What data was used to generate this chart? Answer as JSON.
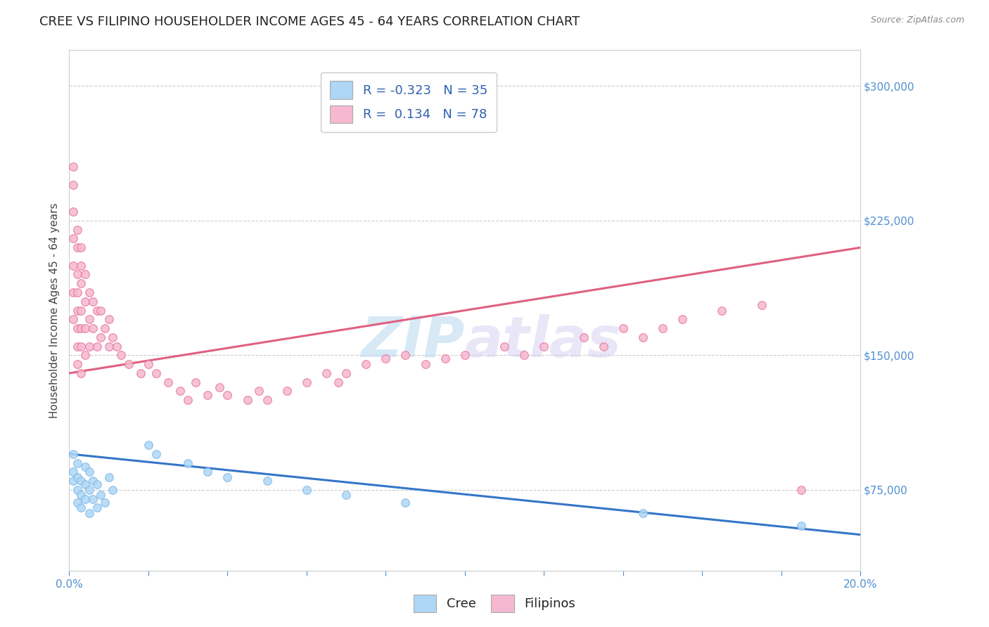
{
  "title": "CREE VS FILIPINO HOUSEHOLDER INCOME AGES 45 - 64 YEARS CORRELATION CHART",
  "source_text": "Source: ZipAtlas.com",
  "ylabel": "Householder Income Ages 45 - 64 years",
  "xlim": [
    0.0,
    0.2
  ],
  "ylim": [
    30000,
    320000
  ],
  "yticks": [
    75000,
    150000,
    225000,
    300000
  ],
  "ytick_labels": [
    "$75,000",
    "$150,000",
    "$225,000",
    "$300,000"
  ],
  "watermark_zip": "ZIP",
  "watermark_atlas": "atlas",
  "cree_color": "#aed6f5",
  "cree_edge_color": "#7ab8e8",
  "filipino_color": "#f5b8d0",
  "filipino_edge_color": "#e87095",
  "cree_line_color": "#3575c8",
  "filipino_line_color": "#e06080",
  "axis_color": "#5090d0",
  "legend_cree_label_r": "R = -0.323",
  "legend_cree_label_n": "N = 35",
  "legend_filipino_label_r": "R =  0.134",
  "legend_filipino_label_n": "N = 78",
  "background_color": "#ffffff",
  "grid_color": "#cccccc",
  "title_fontsize": 13,
  "axis_label_fontsize": 11,
  "tick_fontsize": 11,
  "legend_fontsize": 13,
  "cree_x": [
    0.001,
    0.001,
    0.001,
    0.002,
    0.002,
    0.002,
    0.002,
    0.003,
    0.003,
    0.003,
    0.004,
    0.004,
    0.004,
    0.005,
    0.005,
    0.005,
    0.006,
    0.006,
    0.007,
    0.007,
    0.008,
    0.009,
    0.01,
    0.011,
    0.02,
    0.022,
    0.03,
    0.035,
    0.04,
    0.05,
    0.06,
    0.07,
    0.085,
    0.145,
    0.185
  ],
  "cree_y": [
    95000,
    85000,
    80000,
    90000,
    82000,
    75000,
    68000,
    80000,
    72000,
    65000,
    88000,
    78000,
    70000,
    85000,
    75000,
    62000,
    80000,
    70000,
    78000,
    65000,
    72000,
    68000,
    82000,
    75000,
    100000,
    95000,
    90000,
    85000,
    82000,
    80000,
    75000,
    72000,
    68000,
    62000,
    55000
  ],
  "filipino_x": [
    0.001,
    0.001,
    0.001,
    0.001,
    0.001,
    0.001,
    0.001,
    0.002,
    0.002,
    0.002,
    0.002,
    0.002,
    0.002,
    0.002,
    0.002,
    0.003,
    0.003,
    0.003,
    0.003,
    0.003,
    0.003,
    0.003,
    0.004,
    0.004,
    0.004,
    0.004,
    0.005,
    0.005,
    0.005,
    0.006,
    0.006,
    0.007,
    0.007,
    0.008,
    0.008,
    0.009,
    0.01,
    0.01,
    0.011,
    0.012,
    0.013,
    0.015,
    0.018,
    0.02,
    0.022,
    0.025,
    0.028,
    0.03,
    0.032,
    0.035,
    0.038,
    0.04,
    0.045,
    0.048,
    0.05,
    0.055,
    0.06,
    0.065,
    0.068,
    0.07,
    0.075,
    0.08,
    0.085,
    0.09,
    0.095,
    0.1,
    0.11,
    0.115,
    0.12,
    0.13,
    0.135,
    0.14,
    0.145,
    0.15,
    0.155,
    0.165,
    0.175,
    0.185
  ],
  "filipino_y": [
    255000,
    245000,
    230000,
    215000,
    200000,
    185000,
    170000,
    220000,
    210000,
    195000,
    185000,
    175000,
    165000,
    155000,
    145000,
    210000,
    200000,
    190000,
    175000,
    165000,
    155000,
    140000,
    195000,
    180000,
    165000,
    150000,
    185000,
    170000,
    155000,
    180000,
    165000,
    175000,
    155000,
    175000,
    160000,
    165000,
    170000,
    155000,
    160000,
    155000,
    150000,
    145000,
    140000,
    145000,
    140000,
    135000,
    130000,
    125000,
    135000,
    128000,
    132000,
    128000,
    125000,
    130000,
    125000,
    130000,
    135000,
    140000,
    135000,
    140000,
    145000,
    148000,
    150000,
    145000,
    148000,
    150000,
    155000,
    150000,
    155000,
    160000,
    155000,
    165000,
    160000,
    165000,
    170000,
    175000,
    178000,
    75000
  ]
}
